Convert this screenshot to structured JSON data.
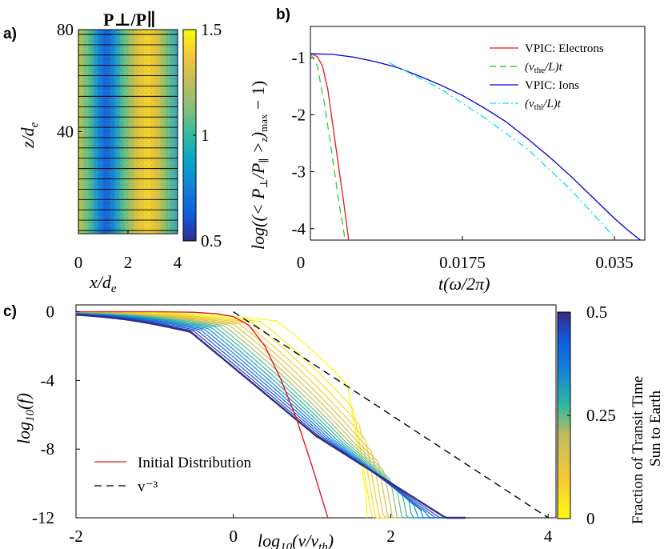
{
  "chart_data": [
    {
      "panel": "a)",
      "type": "heatmap",
      "title": "P⊥/P∥",
      "xlabel": "x/d_e",
      "ylabel": "z/d_e",
      "xticks": [
        "0",
        "2",
        "4"
      ],
      "yticks": [
        "80",
        "40"
      ],
      "xlim": [
        0,
        4
      ],
      "ylim": [
        0,
        80
      ],
      "colorbar": {
        "min": 0.5,
        "max": 1.5,
        "ticks": [
          "1.5",
          "1",
          "0.5"
        ],
        "colormap": "parula"
      },
      "stripe_pattern": "low anisotropy (blue) near x = 1, high anisotropy (yellow) near x = 2.8; periodic in x",
      "contour_lines": 20
    },
    {
      "panel": "b)",
      "type": "line",
      "xlabel": "t(ω/2π)",
      "ylabel": "log((< P⊥/P∥ >z)max − 1)",
      "xlim": [
        0,
        0.0385
      ],
      "ylim": [
        -4.2,
        -0.45
      ],
      "xticks": [
        "0",
        "0.0175",
        "0.035"
      ],
      "yticks": [
        "-1",
        "-2",
        "-3",
        "-4"
      ],
      "series": [
        {
          "name": "VPIC: Electrons",
          "color": "#e31a1c",
          "dash": "solid",
          "x": [
            0,
            0.0008,
            0.0014,
            0.002,
            0.0026,
            0.0032,
            0.0038,
            0.0044
          ],
          "y": [
            -0.92,
            -0.98,
            -1.15,
            -1.55,
            -2.2,
            -2.85,
            -3.5,
            -4.2
          ]
        },
        {
          "name": "(v_the/L)t",
          "color": "#33cc33",
          "dash": "dash",
          "x": [
            0,
            0.0008,
            0.0016,
            0.0024,
            0.0032,
            0.004
          ],
          "y": [
            -0.92,
            -1.15,
            -1.8,
            -2.6,
            -3.45,
            -4.2
          ]
        },
        {
          "name": "VPIC: Ions",
          "color": "#0000cc",
          "dash": "solid",
          "x": [
            0,
            0.0025,
            0.005,
            0.0075,
            0.01,
            0.0125,
            0.015,
            0.0175,
            0.02,
            0.0225,
            0.025,
            0.0275,
            0.03,
            0.0325,
            0.035,
            0.0365,
            0.038
          ],
          "y": [
            -0.93,
            -0.94,
            -0.99,
            -1.07,
            -1.17,
            -1.32,
            -1.48,
            -1.66,
            -1.88,
            -2.12,
            -2.42,
            -2.74,
            -3.08,
            -3.45,
            -3.82,
            -4.02,
            -4.2
          ]
        },
        {
          "name": "(v_thi/L)t",
          "color": "#00e5ee",
          "dash": "dashdot",
          "x": [
            0.009,
            0.015,
            0.02,
            0.025,
            0.03,
            0.035
          ],
          "y": [
            -1.08,
            -1.55,
            -2.05,
            -2.6,
            -3.32,
            -4.15
          ]
        }
      ]
    },
    {
      "panel": "c)",
      "type": "line",
      "xlabel": "log10(v/v_th)",
      "ylabel": "log10(f)",
      "xlim": [
        -2,
        4.1
      ],
      "ylim": [
        -12,
        0.4
      ],
      "xticks": [
        "-2",
        "0",
        "2",
        "4"
      ],
      "yticks": [
        "0",
        "-4",
        "-8",
        "-12"
      ],
      "colorbar": {
        "label_line1": "Fraction of Transit Time",
        "label_line2": "Sun to Earth",
        "min": 0,
        "max": 0.5,
        "ticks": [
          "0.5",
          "0.25",
          "0"
        ]
      },
      "series": [
        {
          "name": "Initial Distribution",
          "color": "#e31a1c",
          "dash": "solid",
          "x": [
            -2,
            -1.5,
            -1,
            -0.5,
            -0.2,
            0,
            0.2,
            0.4,
            0.6,
            0.8,
            1.0,
            1.2
          ],
          "y": [
            0,
            0,
            0,
            -0.03,
            -0.12,
            -0.28,
            -0.8,
            -2.0,
            -3.9,
            -6.2,
            -9.0,
            -12.0
          ]
        },
        {
          "name": "v⁻³",
          "color": "#000000",
          "dash": "dash",
          "x": [
            0,
            4
          ],
          "y": [
            0,
            -12
          ]
        }
      ],
      "evolving_family": {
        "count": 17,
        "fraction_range": [
          0,
          0.5
        ],
        "cutoff_x_first": 1.7,
        "cutoff_x_last": 2.95,
        "knee_x_first": 0.55,
        "knee_x_last": -0.55
      }
    }
  ]
}
